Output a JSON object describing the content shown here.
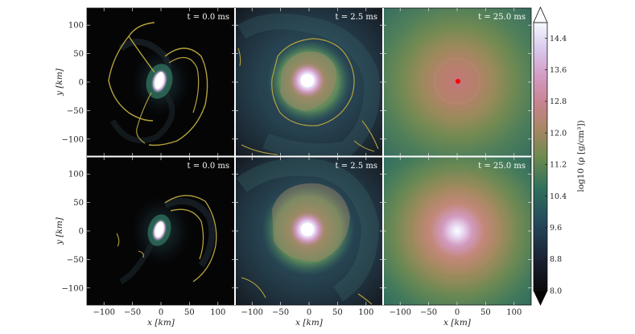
{
  "chart_data": {
    "type": "heatmap",
    "description_free": true,
    "x_label": "x [km]",
    "y_label": "y [km]",
    "x_ticks": [
      "−100",
      "−50",
      "0",
      "50",
      "100"
    ],
    "y_ticks": [
      "100",
      "50",
      "0",
      "−50",
      "−100"
    ],
    "x_tick_values": [
      -100,
      -50,
      0,
      50,
      100
    ],
    "y_tick_values": [
      100,
      50,
      0,
      -50,
      -100
    ],
    "xlim": [
      -130,
      130
    ],
    "ylim": [
      -130,
      130
    ],
    "panels": [
      {
        "row": 0,
        "col": 0,
        "time_label": "t  =  0.0 ms"
      },
      {
        "row": 0,
        "col": 1,
        "time_label": "t  =  2.5 ms"
      },
      {
        "row": 0,
        "col": 2,
        "time_label": "t  =  25.0 ms"
      },
      {
        "row": 1,
        "col": 0,
        "time_label": "t  =  0.0 ms"
      },
      {
        "row": 1,
        "col": 1,
        "time_label": "t  =  2.5 ms"
      },
      {
        "row": 1,
        "col": 2,
        "time_label": "t  =  25.0 ms"
      }
    ],
    "colorbar": {
      "label": "log10 (ρ [g/cm³])",
      "ticks": [
        "14.4",
        "13.6",
        "12.8",
        "12.0",
        "11.2",
        "10.4",
        "9.6",
        "8.8",
        "8.0"
      ],
      "tick_values": [
        14.4,
        13.6,
        12.8,
        12.0,
        11.2,
        10.4,
        9.6,
        8.8,
        8.0
      ],
      "range": [
        8.0,
        14.8
      ],
      "extend": "both"
    },
    "marker": {
      "panel": 2,
      "x": 0,
      "y": 0,
      "color": "#ff0000"
    },
    "contour_color": "#b5a33b"
  }
}
